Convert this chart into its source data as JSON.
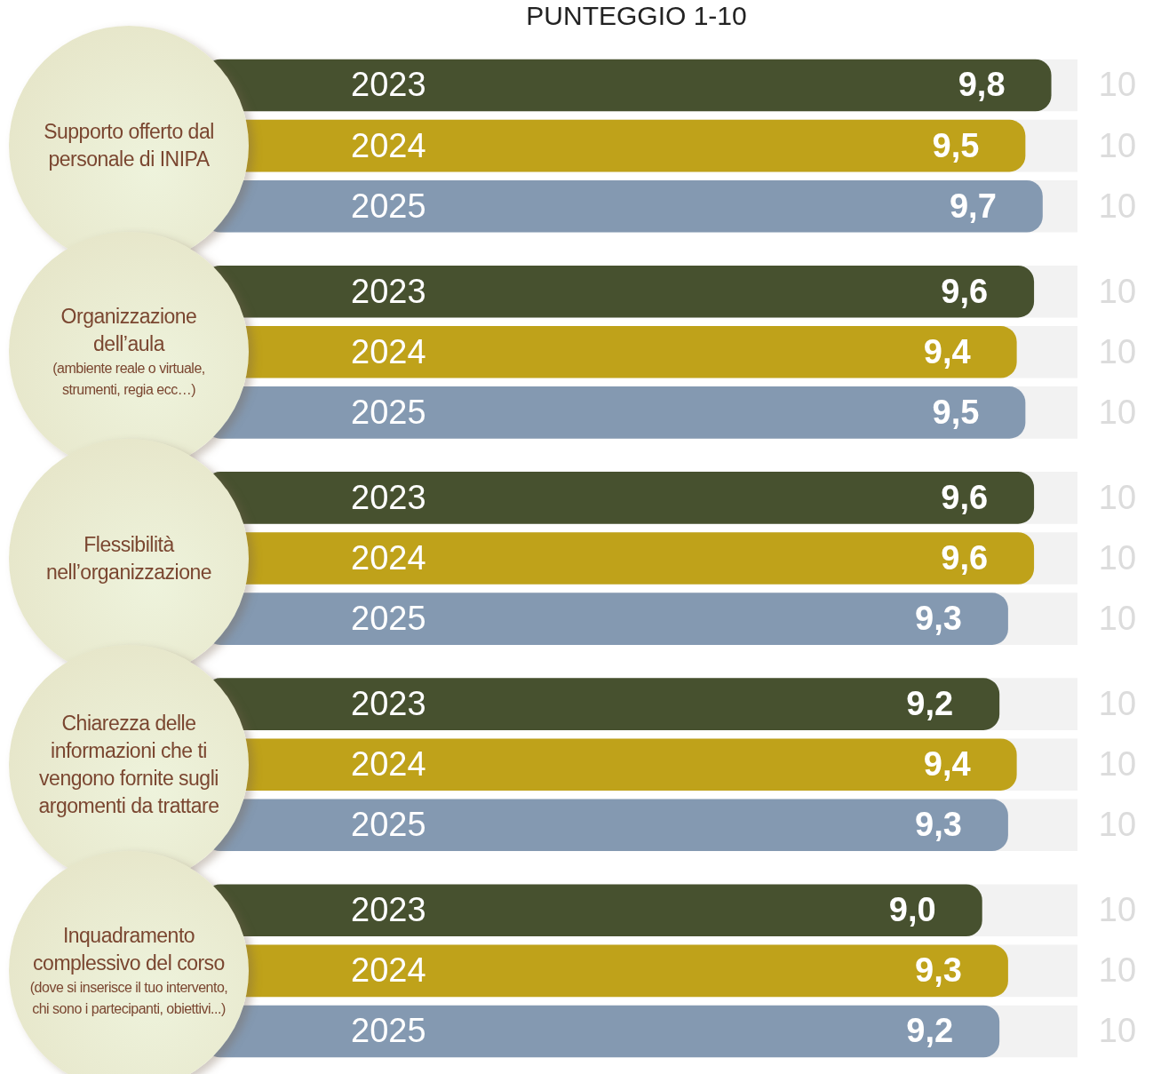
{
  "chart_data": {
    "type": "bar",
    "orientation": "horizontal",
    "title": "PUNTEGGIO 1-10",
    "categories": [
      "Supporto offerto dal personale di INIPA",
      "Organizzazione dell’aula (ambiente reale o virtuale, strumenti, regia ecc…)",
      "Flessibilità nell’organizzazione",
      "Chiarezza delle informazioni che ti vengono fornite sugli argomenti da trattare",
      "Inquadramento complessivo del corso (dove si inserisce il tuo intervento, chi sono i partecipanti, obiettivi...)"
    ],
    "series": [
      {
        "name": "2023",
        "color": "#47512f",
        "values": [
          9.8,
          9.6,
          9.6,
          9.2,
          9.0
        ],
        "value_labels": [
          "9,8",
          "9,6",
          "9,6",
          "9,2",
          "9,0"
        ]
      },
      {
        "name": "2024",
        "color": "#bfa21a",
        "values": [
          9.5,
          9.4,
          9.6,
          9.4,
          9.3
        ],
        "value_labels": [
          "9,5",
          "9,4",
          "9,6",
          "9,4",
          "9,3"
        ]
      },
      {
        "name": "2025",
        "color": "#8499b1",
        "values": [
          9.7,
          9.5,
          9.3,
          9.3,
          9.2
        ],
        "value_labels": [
          "9,7",
          "9,5",
          "9,3",
          "9,3",
          "9,2"
        ]
      }
    ],
    "tick_labels": false,
    "grid": false,
    "legend": false,
    "annotations": [
      "10",
      "10",
      "10",
      "10",
      "10",
      "10",
      "10",
      "10",
      "10",
      "10",
      "10",
      "10",
      "10",
      "10",
      "10"
    ]
  }
}
